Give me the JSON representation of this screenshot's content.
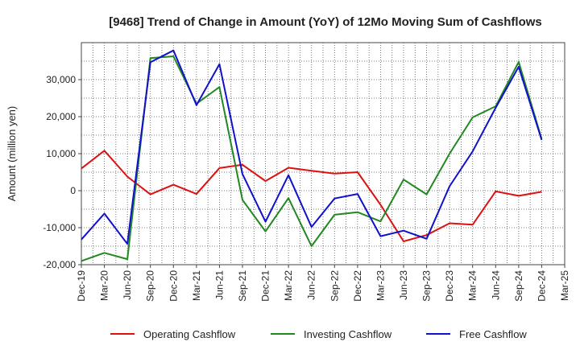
{
  "chart_data": {
    "type": "line",
    "title": "[9468]  Trend of Change in Amount (YoY) of 12Mo Moving Sum of Cashflows",
    "xlabel": "",
    "ylabel": "Amount (million yen)",
    "ylim": [
      -20000,
      40000
    ],
    "yticks": [
      -20000,
      -10000,
      0,
      10000,
      20000,
      30000
    ],
    "ytick_labels": [
      "-20,000",
      "-10,000",
      "0",
      "10,000",
      "20,000",
      "30,000"
    ],
    "categories": [
      "Dec-19",
      "Mar-20",
      "Jun-20",
      "Sep-20",
      "Dec-20",
      "Mar-21",
      "Jun-21",
      "Sep-21",
      "Dec-21",
      "Mar-22",
      "Jun-22",
      "Sep-22",
      "Dec-22",
      "Mar-23",
      "Jun-23",
      "Sep-23",
      "Dec-23",
      "Mar-24",
      "Jun-24",
      "Sep-24",
      "Dec-24",
      "Mar-25"
    ],
    "grid": true,
    "legend_position": "bottom",
    "series": [
      {
        "name": "Operating Cashflow",
        "color": "#dd1111",
        "values": [
          6000,
          10800,
          3800,
          -1000,
          1600,
          -900,
          6100,
          7000,
          2600,
          6200,
          5400,
          4600,
          5000,
          -3800,
          -13700,
          -12000,
          -8800,
          -9200,
          -200,
          -1400,
          -300,
          null
        ]
      },
      {
        "name": "Investing Cashflow",
        "color": "#228822",
        "values": [
          -19000,
          -16800,
          -18500,
          35800,
          36300,
          23500,
          28000,
          -2500,
          -11000,
          -2000,
          -15000,
          -6500,
          -5800,
          -8300,
          3000,
          -1000,
          10000,
          19800,
          22800,
          34800,
          14000,
          null
        ]
      },
      {
        "name": "Free Cashflow",
        "color": "#1111cc",
        "values": [
          -13200,
          -6200,
          -14400,
          34700,
          37900,
          23100,
          34200,
          4500,
          -8400,
          4200,
          -9800,
          -2100,
          -900,
          -12300,
          -10800,
          -13000,
          1200,
          10600,
          22400,
          33500,
          13700,
          null
        ]
      }
    ]
  }
}
